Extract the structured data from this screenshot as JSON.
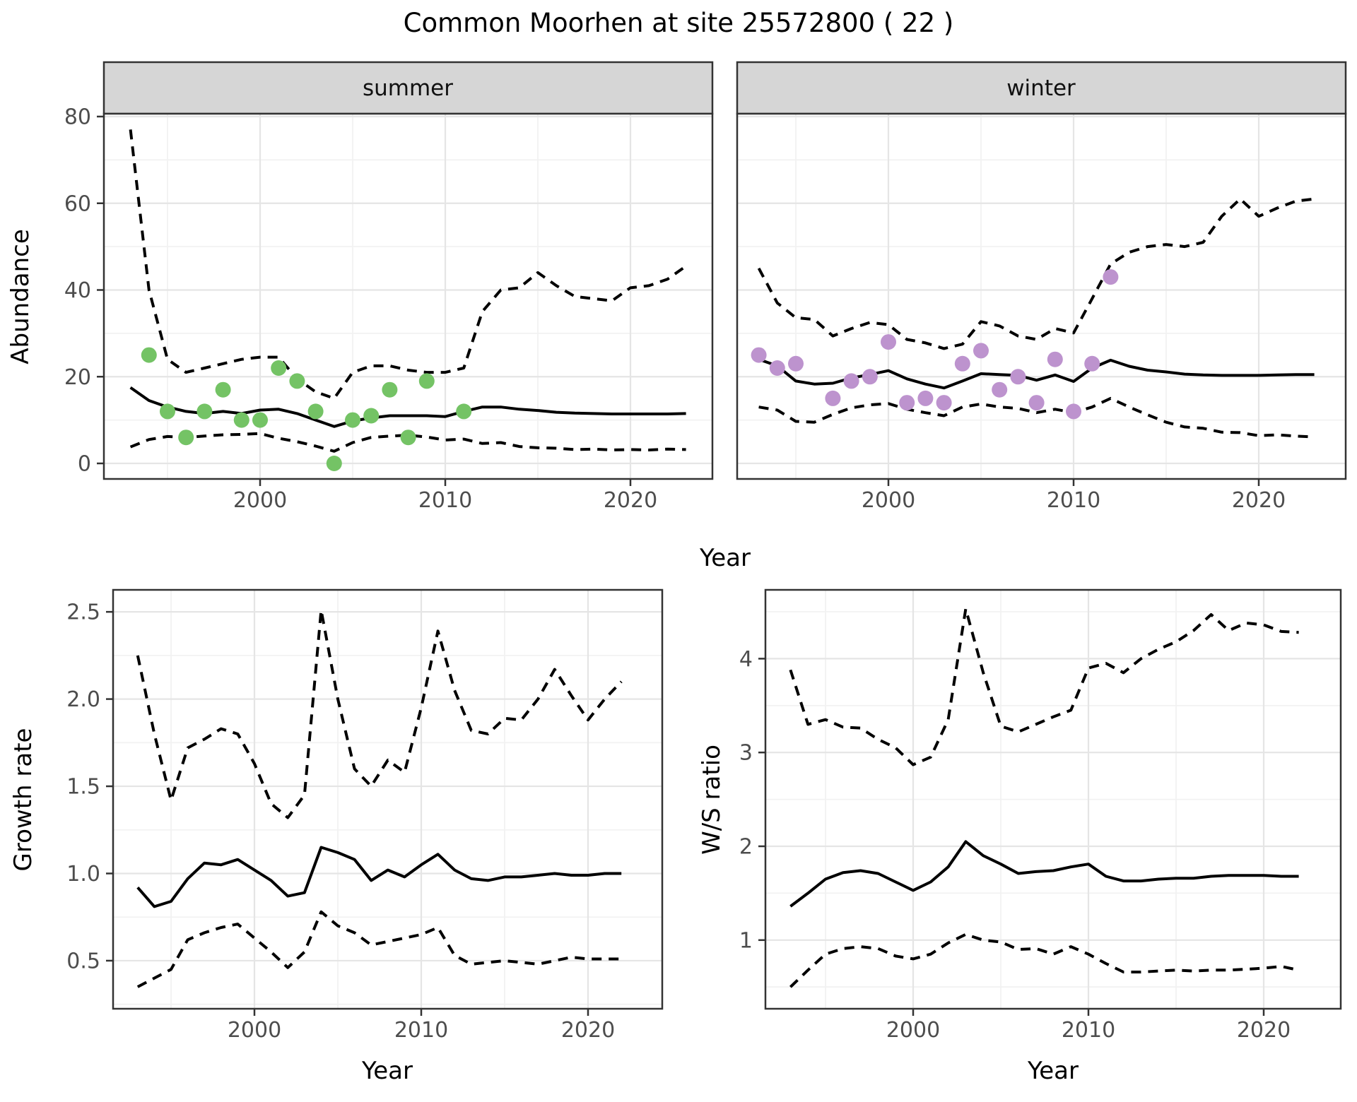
{
  "title": "Common Moorhen at site 25572800 ( 22 )",
  "facets": {
    "summer": "summer",
    "winter": "winter"
  },
  "axis": {
    "year_label": "Year",
    "top": {
      "y_label": "Abundance",
      "y_ticks": [
        0,
        20,
        40,
        60,
        80
      ],
      "y_minor": [
        10,
        30,
        50,
        70
      ],
      "x_ticks": [
        2000,
        2010,
        2020
      ],
      "x_minor": [
        1995,
        2005,
        2015
      ]
    },
    "growth": {
      "y_label": "Growth rate",
      "y_ticks": [
        0.5,
        1.0,
        1.5,
        2.0,
        2.5
      ],
      "y_tick_labels": [
        "0.5",
        "1.0",
        "1.5",
        "2.0",
        "2.5"
      ],
      "y_minor": [
        0.25,
        0.75,
        1.25,
        1.75,
        2.25
      ],
      "x_ticks": [
        2000,
        2010,
        2020
      ],
      "x_minor": [
        1995,
        2005,
        2015
      ]
    },
    "ws": {
      "y_label": "W/S ratio",
      "y_ticks": [
        1,
        2,
        3,
        4
      ],
      "y_tick_labels": [
        "1",
        "2",
        "3",
        "4"
      ],
      "y_minor": [
        0.5,
        1.5,
        2.5,
        3.5,
        4.5
      ],
      "x_ticks": [
        2000,
        2010,
        2020
      ],
      "x_minor": [
        1995,
        2005,
        2015
      ]
    }
  },
  "colors": {
    "summer_point": "#74c365",
    "winter_point": "#bd93ce",
    "line": "#000000",
    "strip_bg": "#d6d6d6",
    "panel_bg": "#ffffff",
    "grid_major": "#e5e5e5",
    "grid_minor": "#f2f2f2",
    "panel_border": "#333333",
    "tick_mark": "#333333",
    "tick_text": "#4d4d4d"
  },
  "chart_data": [
    {
      "name": "abundance_summer",
      "type": "line+scatter",
      "facet": "summer",
      "xlabel": "Year",
      "ylabel": "Abundance",
      "xlim": [
        1991.5,
        2023.5
      ],
      "ylim": [
        -3.5,
        84
      ],
      "years": [
        1993,
        1994,
        1995,
        1996,
        1997,
        1998,
        1999,
        2000,
        2001,
        2002,
        2003,
        2004,
        2005,
        2006,
        2007,
        2008,
        2009,
        2010,
        2011,
        2012,
        2013,
        2014,
        2015,
        2016,
        2017,
        2018,
        2019,
        2020,
        2021,
        2022,
        2023
      ],
      "series": [
        {
          "name": "median",
          "style": "solid",
          "values": [
            17.5,
            14.5,
            13,
            12,
            11.5,
            12,
            11.5,
            12.3,
            12.5,
            11.5,
            10,
            8.5,
            9.8,
            10.5,
            11,
            11,
            11,
            10.8,
            12,
            13,
            13,
            12.5,
            12.2,
            11.8,
            11.6,
            11.5,
            11.4,
            11.4,
            11.4,
            11.4,
            11.5
          ]
        },
        {
          "name": "upper_ci",
          "style": "dashed",
          "values": [
            77,
            40,
            24,
            21,
            22,
            23,
            24,
            24.5,
            24.5,
            19.5,
            16.5,
            15,
            21,
            22.5,
            22.5,
            21.5,
            21,
            21,
            22,
            35,
            40,
            40.5,
            44,
            41,
            38.5,
            38,
            37.5,
            40.5,
            41,
            42.5,
            45.5
          ]
        },
        {
          "name": "lower_ci",
          "style": "dashed",
          "values": [
            3.8,
            5.5,
            6.2,
            6,
            6.3,
            6.6,
            6.7,
            6.9,
            5.8,
            5,
            4,
            2.8,
            4.8,
            6,
            6.3,
            6.5,
            6.1,
            5.4,
            5.6,
            4.6,
            4.8,
            3.9,
            3.6,
            3.5,
            3.2,
            3.3,
            3.1,
            3.2,
            3.1,
            3.3,
            3.2
          ]
        }
      ],
      "observed_points": {
        "x": [
          1994,
          1995,
          1996,
          1997,
          1998,
          1999,
          2000,
          2001,
          2002,
          2003,
          2004,
          2005,
          2006,
          2007,
          2008,
          2009,
          2011
        ],
        "y": [
          25,
          12,
          6,
          12,
          17,
          10,
          10,
          22,
          19,
          12,
          0,
          10,
          11,
          17,
          6,
          19,
          12
        ]
      }
    },
    {
      "name": "abundance_winter",
      "type": "line+scatter",
      "facet": "winter",
      "xlabel": "Year",
      "ylabel": "Abundance",
      "xlim": [
        1991.5,
        2023.5
      ],
      "ylim": [
        -3.5,
        84
      ],
      "years": [
        1993,
        1994,
        1995,
        1996,
        1997,
        1998,
        1999,
        2000,
        2001,
        2002,
        2003,
        2004,
        2005,
        2006,
        2007,
        2008,
        2009,
        2010,
        2011,
        2012,
        2013,
        2014,
        2015,
        2016,
        2017,
        2018,
        2019,
        2020,
        2021,
        2022,
        2023
      ],
      "series": [
        {
          "name": "median",
          "style": "solid",
          "values": [
            24,
            22.5,
            19,
            18.3,
            18.5,
            19.7,
            20.5,
            21.4,
            19.5,
            18.3,
            17.4,
            19,
            20.7,
            20.5,
            20.3,
            19.2,
            20.4,
            18.9,
            22,
            23.8,
            22.4,
            21.5,
            21.1,
            20.6,
            20.4,
            20.3,
            20.3,
            20.3,
            20.4,
            20.5,
            20.5
          ]
        },
        {
          "name": "upper_ci",
          "style": "dashed",
          "values": [
            45,
            37,
            33.6,
            33.2,
            29.4,
            31.1,
            32.5,
            32,
            28.6,
            27.8,
            26.5,
            27.5,
            32.7,
            31.7,
            29.4,
            28.6,
            31.1,
            30.1,
            38,
            46,
            48.7,
            50,
            50.5,
            50,
            51,
            57,
            61,
            57,
            58.9,
            60.5,
            61
          ]
        },
        {
          "name": "lower_ci",
          "style": "dashed",
          "values": [
            13,
            12.3,
            9.7,
            9.5,
            11.3,
            12.8,
            13.5,
            13.8,
            12.5,
            11.7,
            11,
            13,
            13.7,
            13,
            12.7,
            11.7,
            12.5,
            11.7,
            13,
            15,
            13,
            11.2,
            9.5,
            8.4,
            8.1,
            7.2,
            7.1,
            6.4,
            6.6,
            6.3,
            6.1
          ]
        }
      ],
      "observed_points": {
        "x": [
          1993,
          1994,
          1995,
          1997,
          1998,
          1999,
          2000,
          2001,
          2002,
          2003,
          2004,
          2005,
          2006,
          2007,
          2008,
          2009,
          2010,
          2011,
          2012
        ],
        "y": [
          25,
          22,
          23,
          15,
          19,
          20,
          28,
          14,
          15,
          14,
          23,
          26,
          17,
          20,
          14,
          24,
          12,
          23,
          43
        ]
      }
    },
    {
      "name": "growth_rate",
      "type": "line",
      "xlabel": "Year",
      "ylabel": "Growth rate",
      "xlim": [
        1991.5,
        2024.6
      ],
      "ylim": [
        0.22,
        2.62
      ],
      "years": [
        1993,
        1994,
        1995,
        1996,
        1997,
        1998,
        1999,
        2000,
        2001,
        2002,
        2003,
        2004,
        2005,
        2006,
        2007,
        2008,
        2009,
        2010,
        2011,
        2012,
        2013,
        2014,
        2015,
        2016,
        2017,
        2018,
        2019,
        2020,
        2021,
        2022
      ],
      "series": [
        {
          "name": "median",
          "style": "solid",
          "values": [
            0.92,
            0.81,
            0.84,
            0.97,
            1.06,
            1.05,
            1.08,
            1.02,
            0.96,
            0.87,
            0.89,
            1.15,
            1.12,
            1.08,
            0.96,
            1.02,
            0.98,
            1.05,
            1.11,
            1.02,
            0.97,
            0.96,
            0.98,
            0.98,
            0.99,
            1.0,
            0.99,
            0.99,
            1.0,
            1.0
          ]
        },
        {
          "name": "upper_ci",
          "style": "dashed",
          "values": [
            2.25,
            1.8,
            1.42,
            1.72,
            1.77,
            1.83,
            1.8,
            1.63,
            1.4,
            1.32,
            1.45,
            2.51,
            2.0,
            1.6,
            1.5,
            1.65,
            1.58,
            1.95,
            2.39,
            2.05,
            1.82,
            1.8,
            1.89,
            1.88,
            2.0,
            2.17,
            2.02,
            1.88,
            2.0,
            2.1
          ]
        },
        {
          "name": "lower_ci",
          "style": "dashed",
          "values": [
            0.35,
            0.4,
            0.45,
            0.62,
            0.66,
            0.69,
            0.71,
            0.63,
            0.55,
            0.46,
            0.55,
            0.78,
            0.7,
            0.66,
            0.59,
            0.61,
            0.63,
            0.65,
            0.69,
            0.53,
            0.48,
            0.49,
            0.5,
            0.49,
            0.48,
            0.5,
            0.52,
            0.51,
            0.51,
            0.51
          ]
        }
      ]
    },
    {
      "name": "ws_ratio",
      "type": "line",
      "xlabel": "Year",
      "ylabel": "W/S ratio",
      "xlim": [
        1991.5,
        2024.4
      ],
      "ylim": [
        0.34,
        4.8
      ],
      "years": [
        1993,
        1994,
        1995,
        1996,
        1997,
        1998,
        1999,
        2000,
        2001,
        2002,
        2003,
        2004,
        2005,
        2006,
        2007,
        2008,
        2009,
        2010,
        2011,
        2012,
        2013,
        2014,
        2015,
        2016,
        2017,
        2018,
        2019,
        2020,
        2021,
        2022
      ],
      "series": [
        {
          "name": "median",
          "style": "solid",
          "values": [
            1.36,
            1.5,
            1.65,
            1.72,
            1.74,
            1.71,
            1.62,
            1.53,
            1.62,
            1.78,
            2.05,
            1.9,
            1.81,
            1.71,
            1.73,
            1.74,
            1.78,
            1.81,
            1.68,
            1.63,
            1.63,
            1.65,
            1.66,
            1.66,
            1.68,
            1.69,
            1.69,
            1.69,
            1.68,
            1.68
          ]
        },
        {
          "name": "upper_ci",
          "style": "dashed",
          "values": [
            3.88,
            3.3,
            3.35,
            3.27,
            3.26,
            3.14,
            3.05,
            2.87,
            2.95,
            3.35,
            4.53,
            3.85,
            3.28,
            3.22,
            3.3,
            3.38,
            3.45,
            3.9,
            3.95,
            3.85,
            4.0,
            4.1,
            4.18,
            4.3,
            4.47,
            4.3,
            4.38,
            4.36,
            4.29,
            4.28
          ]
        },
        {
          "name": "lower_ci",
          "style": "dashed",
          "values": [
            0.5,
            0.68,
            0.85,
            0.91,
            0.93,
            0.91,
            0.83,
            0.8,
            0.85,
            0.97,
            1.06,
            1.0,
            0.98,
            0.9,
            0.91,
            0.85,
            0.93,
            0.85,
            0.75,
            0.66,
            0.66,
            0.67,
            0.68,
            0.67,
            0.68,
            0.68,
            0.69,
            0.7,
            0.72,
            0.68
          ]
        }
      ]
    }
  ]
}
